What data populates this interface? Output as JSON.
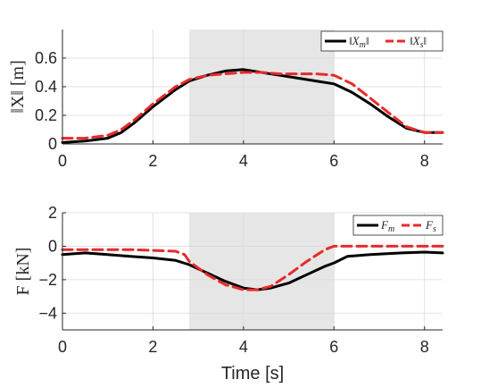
{
  "chart_data": [
    {
      "type": "line",
      "ylabel": "‖X‖ [m]",
      "xlabel": "",
      "xlim": [
        0,
        8.4
      ],
      "ylim": [
        0,
        0.8
      ],
      "xticks": [
        0,
        2,
        4,
        6,
        8
      ],
      "yticks": [
        0,
        0.2,
        0.4,
        0.6
      ],
      "grid": true,
      "legend_position": "top-right",
      "shaded_interval": [
        2.8,
        6.0
      ],
      "series": [
        {
          "name": "‖Xm‖",
          "color": "#000000",
          "style": "solid",
          "x": [
            0,
            0.5,
            1.0,
            1.3,
            1.6,
            2.0,
            2.5,
            2.8,
            3.2,
            3.6,
            4.0,
            4.4,
            4.8,
            5.2,
            5.6,
            6.0,
            6.4,
            6.8,
            7.2,
            7.6,
            8.0,
            8.4
          ],
          "values": [
            0.01,
            0.02,
            0.04,
            0.08,
            0.15,
            0.26,
            0.38,
            0.44,
            0.48,
            0.51,
            0.52,
            0.5,
            0.48,
            0.46,
            0.44,
            0.42,
            0.36,
            0.28,
            0.19,
            0.11,
            0.08,
            0.08
          ]
        },
        {
          "name": "‖Xs‖",
          "color": "#e82a2a",
          "style": "dashed",
          "x": [
            0,
            0.5,
            1.0,
            1.3,
            1.6,
            2.0,
            2.5,
            2.8,
            3.2,
            3.6,
            4.0,
            4.4,
            4.8,
            5.2,
            5.6,
            6.0,
            6.4,
            6.8,
            7.2,
            7.6,
            8.0,
            8.4
          ],
          "values": [
            0.04,
            0.04,
            0.06,
            0.1,
            0.17,
            0.28,
            0.4,
            0.45,
            0.48,
            0.49,
            0.5,
            0.5,
            0.49,
            0.49,
            0.49,
            0.48,
            0.42,
            0.32,
            0.22,
            0.12,
            0.08,
            0.08
          ]
        }
      ]
    },
    {
      "type": "line",
      "ylabel": "F [kN]",
      "xlabel": "Time [s]",
      "xlim": [
        0,
        8.4
      ],
      "ylim": [
        -5,
        2
      ],
      "xticks": [
        0,
        2,
        4,
        6,
        8
      ],
      "yticks": [
        -4,
        -2,
        0,
        2
      ],
      "grid": true,
      "legend_position": "top-right",
      "shaded_interval": [
        2.8,
        6.0
      ],
      "series": [
        {
          "name": "Fm",
          "color": "#000000",
          "style": "solid",
          "x": [
            0,
            0.5,
            1.0,
            1.5,
            2.0,
            2.5,
            2.8,
            3.2,
            3.6,
            4.0,
            4.3,
            4.6,
            5.0,
            5.4,
            5.8,
            6.0,
            6.3,
            6.8,
            7.5,
            8.0,
            8.4
          ],
          "values": [
            -0.5,
            -0.4,
            -0.5,
            -0.6,
            -0.7,
            -0.85,
            -1.1,
            -1.6,
            -2.1,
            -2.5,
            -2.6,
            -2.5,
            -2.2,
            -1.7,
            -1.2,
            -1.0,
            -0.6,
            -0.5,
            -0.4,
            -0.35,
            -0.4
          ]
        },
        {
          "name": "Fs",
          "color": "#e82a2a",
          "style": "dashed",
          "x": [
            0,
            0.5,
            1.0,
            1.5,
            2.0,
            2.5,
            2.7,
            2.8,
            3.2,
            3.6,
            4.0,
            4.3,
            4.6,
            5.0,
            5.4,
            5.8,
            6.0,
            6.5,
            7.0,
            8.0,
            8.4
          ],
          "values": [
            -0.2,
            -0.2,
            -0.2,
            -0.2,
            -0.25,
            -0.3,
            -0.5,
            -0.9,
            -1.7,
            -2.3,
            -2.6,
            -2.6,
            -2.4,
            -1.7,
            -0.9,
            -0.2,
            0.0,
            0.0,
            0.0,
            0.0,
            0.0
          ]
        }
      ]
    }
  ]
}
